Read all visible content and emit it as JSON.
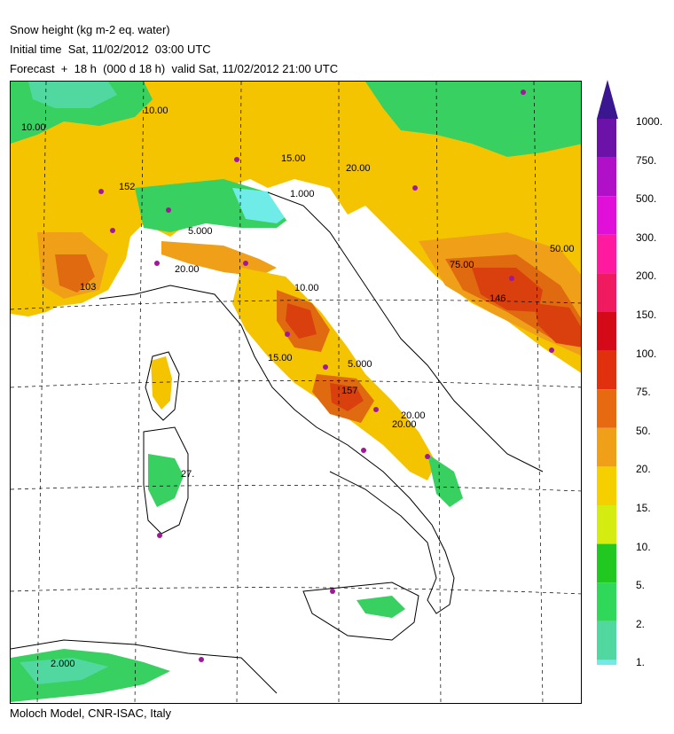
{
  "header": {
    "title": "Snow height (kg m-2 eq. water)",
    "initial_time": "Initial time  Sat, 11/02/2012  03:00 UTC",
    "forecast": "Forecast  +  18 h  (000 d 18 h)  valid Sat, 11/02/2012 21:00 UTC"
  },
  "footer": {
    "credit": "Moloch Model, CNR-ISAC, Italy"
  },
  "legend": {
    "levels": [
      "1000.",
      "750.",
      "500.",
      "300.",
      "200.",
      "150.",
      "100.",
      "75.",
      "50.",
      "20.",
      "15.",
      "10.",
      "5.",
      "2.",
      "1."
    ],
    "colors": [
      "#6d12a8",
      "#b010c8",
      "#e010d8",
      "#ff1aa0",
      "#f01a60",
      "#d40a18",
      "#e0300e",
      "#e86a10",
      "#f0a018",
      "#f5cf00",
      "#d4ec10",
      "#20c820",
      "#30d85a",
      "#50d8a0",
      "#70ece8"
    ],
    "arrow_color": "#3a1690"
  },
  "map": {
    "contour_labels": [
      "20.00",
      "10.00",
      "15.00",
      "5.000",
      "20.00",
      "50.00",
      "75.00",
      "146",
      "152",
      "157",
      "103",
      "10.00",
      "15.00",
      "5.000",
      "20.00",
      "27.",
      "2.000",
      "1.000",
      "10.00",
      "20.00"
    ],
    "colors": {
      "snow_low": "#f5c400",
      "snow_mid": "#f0a018",
      "snow_high": "#e06a10",
      "snow_peak": "#d9400e",
      "green_1": "#38d060",
      "green_2": "#50d8a0",
      "green_3": "#20c020",
      "cyan": "#70ece8",
      "land_border": "#000000",
      "city": "#a0189a"
    }
  }
}
